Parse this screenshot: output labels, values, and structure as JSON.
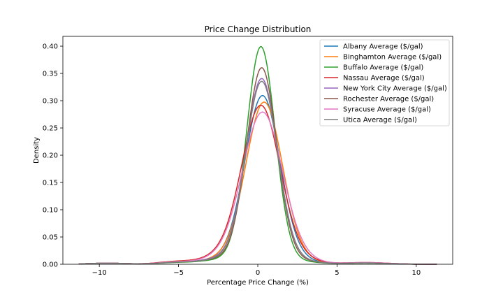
{
  "chart_data": {
    "type": "line",
    "title": "Price Change Distribution",
    "xlabel": "Percentage Price Change (%)",
    "ylabel": "Density",
    "xlim": [
      -12.3,
      12.3
    ],
    "ylim": [
      0,
      0.418
    ],
    "xticks": [
      -10,
      -5,
      0,
      5,
      10
    ],
    "xtick_labels": [
      "−10",
      "−5",
      "0",
      "5",
      "10"
    ],
    "yticks": [
      0,
      0.05,
      0.1,
      0.15,
      0.2,
      0.25,
      0.3,
      0.35,
      0.4
    ],
    "ytick_labels": [
      "0.00",
      "0.05",
      "0.10",
      "0.15",
      "0.20",
      "0.25",
      "0.30",
      "0.35",
      "0.40"
    ],
    "grid": false,
    "legend_position": "top-right",
    "series": [
      {
        "name": "Albany Average ($/gal)",
        "color": "#1f77b4",
        "peak": 0.307,
        "mu": 0.3,
        "sigma": 1.1,
        "tail_left": 0.8,
        "tail_right": 0.6
      },
      {
        "name": "Binghamton Average ($/gal)",
        "color": "#ff7f0e",
        "peak": 0.295,
        "mu": 0.4,
        "sigma": 1.15,
        "tail_left": 0.8,
        "tail_right": 0.6
      },
      {
        "name": "Buffalo Average ($/gal)",
        "color": "#2ca02c",
        "peak": 0.397,
        "mu": 0.2,
        "sigma": 0.9,
        "tail_left": 0.7,
        "tail_right": 0.5
      },
      {
        "name": "Nassau Average ($/gal)",
        "color": "#d62728",
        "peak": 0.288,
        "mu": 0.2,
        "sigma": 1.2,
        "tail_left": 1.2,
        "tail_right": 0.8
      },
      {
        "name": "New York City Average ($/gal)",
        "color": "#9467bd",
        "peak": 0.338,
        "mu": 0.25,
        "sigma": 1.0,
        "tail_left": 0.9,
        "tail_right": 0.6
      },
      {
        "name": "Rochester Average ($/gal)",
        "color": "#8c564b",
        "peak": 0.358,
        "mu": 0.25,
        "sigma": 0.95,
        "tail_left": 0.8,
        "tail_right": 0.6
      },
      {
        "name": "Syracuse Average ($/gal)",
        "color": "#e377c2",
        "peak": 0.276,
        "mu": 0.3,
        "sigma": 1.25,
        "tail_left": 1.0,
        "tail_right": 0.8
      },
      {
        "name": "Utica Average ($/gal)",
        "color": "#7f7f7f",
        "peak": 0.333,
        "mu": 0.25,
        "sigma": 1.0,
        "tail_left": 0.8,
        "tail_right": 0.6
      }
    ]
  }
}
